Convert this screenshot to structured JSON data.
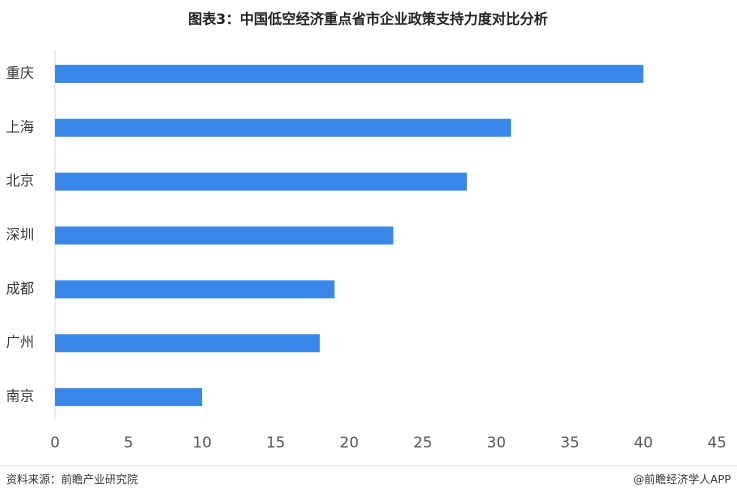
{
  "chart_data": {
    "type": "bar",
    "orientation": "horizontal",
    "title": "图表3：中国低空经济重点省市企业政策支持力度对比分析",
    "categories": [
      "重庆",
      "上海",
      "北京",
      "深圳",
      "成都",
      "广州",
      "南京"
    ],
    "values": [
      40,
      31,
      28,
      23,
      19,
      18,
      10
    ],
    "color": "#3b87e9",
    "xlim": [
      0,
      45
    ],
    "xticks": [
      0,
      5,
      10,
      15,
      20,
      25,
      30,
      35,
      40,
      45
    ],
    "grid": false,
    "source": "资料来源：前瞻产业研究院",
    "credit": "@前瞻经济学人APP"
  }
}
